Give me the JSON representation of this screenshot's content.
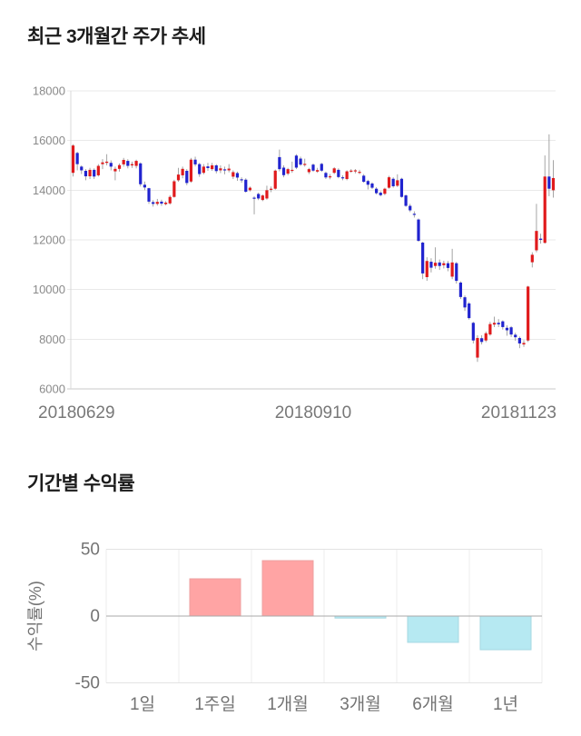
{
  "price_section": {
    "title": "최근 3개월간 주가 추세"
  },
  "returns_section": {
    "title": "기간별 수익률"
  },
  "chart_data": [
    {
      "type": "candlestick",
      "title": "최근 3개월간 주가 추세",
      "x_tick_labels": [
        "20180629",
        "20180910",
        "20181123"
      ],
      "y_ticks": [
        18000,
        16000,
        14000,
        12000,
        10000,
        8000,
        6000
      ],
      "ylim": [
        6000,
        18000
      ],
      "grid": true,
      "up_color": "#e01a1c",
      "down_color": "#2023cf",
      "wick_color": "#9a9a9a",
      "candles_ohlc": [
        [
          14700,
          15850,
          14550,
          15800
        ],
        [
          15500,
          15550,
          14800,
          15050
        ],
        [
          14950,
          15000,
          14650,
          14800
        ],
        [
          14780,
          14850,
          14400,
          14560
        ],
        [
          14560,
          14900,
          14450,
          14820
        ],
        [
          14820,
          14880,
          14450,
          14550
        ],
        [
          14600,
          15050,
          14550,
          14980
        ],
        [
          15050,
          15250,
          14850,
          15120
        ],
        [
          15100,
          15450,
          15000,
          15150
        ],
        [
          15100,
          15200,
          14800,
          14950
        ],
        [
          14760,
          14950,
          14400,
          14860
        ],
        [
          14860,
          15080,
          14750,
          15010
        ],
        [
          15040,
          15300,
          14950,
          15220
        ],
        [
          15180,
          15250,
          14880,
          14980
        ],
        [
          15000,
          15150,
          14900,
          15050
        ],
        [
          14980,
          15230,
          14880,
          15180
        ],
        [
          15080,
          15120,
          14150,
          14240
        ],
        [
          14220,
          14350,
          14000,
          14110
        ],
        [
          14080,
          14100,
          13450,
          13540
        ],
        [
          13520,
          13600,
          13340,
          13450
        ],
        [
          13450,
          13650,
          13380,
          13530
        ],
        [
          13540,
          13620,
          13370,
          13460
        ],
        [
          13440,
          13560,
          13390,
          13500
        ],
        [
          13470,
          13800,
          13420,
          13730
        ],
        [
          13730,
          14420,
          13700,
          14360
        ],
        [
          14400,
          14900,
          14340,
          14630
        ],
        [
          14600,
          14950,
          14480,
          14860
        ],
        [
          14780,
          14850,
          14200,
          14290
        ],
        [
          14350,
          15300,
          14300,
          15230
        ],
        [
          15230,
          15350,
          14960,
          15040
        ],
        [
          15050,
          15100,
          14540,
          14650
        ],
        [
          14700,
          15050,
          14640,
          14950
        ],
        [
          14960,
          15100,
          14780,
          14890
        ],
        [
          14850,
          15100,
          14780,
          15000
        ],
        [
          15000,
          15050,
          14680,
          14770
        ],
        [
          14800,
          15000,
          14690,
          14880
        ],
        [
          14840,
          14950,
          14640,
          14820
        ],
        [
          14800,
          15050,
          14720,
          14870
        ],
        [
          14545,
          14800,
          14450,
          14727
        ],
        [
          14690,
          14750,
          14380,
          14509
        ],
        [
          14440,
          14520,
          14300,
          14436
        ],
        [
          14424,
          14480,
          13900,
          13939
        ],
        [
          14000,
          14150,
          13950,
          14100
        ],
        [
          13700,
          13760,
          13030,
          13697
        ],
        [
          13848,
          13900,
          13600,
          13667
        ],
        [
          13606,
          13830,
          13560,
          13788
        ],
        [
          13667,
          14180,
          13620,
          14000
        ],
        [
          14020,
          14150,
          13920,
          14060
        ],
        [
          14061,
          14830,
          14020,
          14788
        ],
        [
          15333,
          15636,
          14760,
          14848
        ],
        [
          14909,
          15000,
          14520,
          14606
        ],
        [
          14667,
          14900,
          14600,
          14848
        ],
        [
          14780,
          15150,
          14700,
          14820
        ],
        [
          15394,
          15450,
          14850,
          14909
        ],
        [
          15273,
          15350,
          14980,
          15030
        ],
        [
          15050,
          15270,
          14950,
          15060
        ],
        [
          14727,
          14900,
          14650,
          14848
        ],
        [
          15030,
          15080,
          14740,
          14788
        ],
        [
          14750,
          14900,
          14700,
          14810
        ],
        [
          15061,
          15100,
          14740,
          14788
        ],
        [
          14697,
          14750,
          14450,
          14515
        ],
        [
          14540,
          14650,
          14440,
          14560
        ],
        [
          14700,
          14930,
          14650,
          14880
        ],
        [
          14820,
          14880,
          14480,
          14530
        ],
        [
          14520,
          14600,
          14400,
          14480
        ],
        [
          14450,
          14800,
          14400,
          14760
        ],
        [
          14780,
          14850,
          14700,
          14790
        ],
        [
          14780,
          14850,
          14680,
          14800
        ],
        [
          14740,
          14820,
          14650,
          14740
        ],
        [
          14585,
          14650,
          14300,
          14340
        ],
        [
          14370,
          14420,
          14030,
          14220
        ],
        [
          14270,
          14320,
          14050,
          14100
        ],
        [
          14060,
          14120,
          13830,
          13880
        ],
        [
          13900,
          13960,
          13750,
          13800
        ],
        [
          13855,
          14100,
          13800,
          14060
        ],
        [
          14100,
          14580,
          14060,
          14520
        ],
        [
          14460,
          14520,
          14100,
          14160
        ],
        [
          14180,
          14640,
          14130,
          14400
        ],
        [
          14460,
          14500,
          13700,
          13730
        ],
        [
          13790,
          13830,
          13330,
          13370
        ],
        [
          13370,
          13450,
          13120,
          13190
        ],
        [
          13050,
          13150,
          12900,
          13020
        ],
        [
          12820,
          12860,
          11930,
          11960
        ],
        [
          11890,
          11920,
          10420,
          10650
        ],
        [
          10500,
          11300,
          10350,
          11150
        ],
        [
          11120,
          11260,
          10690,
          10880
        ],
        [
          10950,
          11700,
          10840,
          11080
        ],
        [
          11090,
          11210,
          10790,
          10950
        ],
        [
          10980,
          11160,
          10850,
          11060
        ],
        [
          11060,
          11150,
          10740,
          10870
        ],
        [
          10520,
          11640,
          10420,
          11090
        ],
        [
          11060,
          11110,
          10240,
          10350
        ],
        [
          10280,
          10330,
          9620,
          9700
        ],
        [
          9690,
          9760,
          9140,
          9280
        ],
        [
          9440,
          9500,
          8790,
          8850
        ],
        [
          8660,
          8700,
          7830,
          7950
        ],
        [
          7260,
          8160,
          7090,
          8050
        ],
        [
          8040,
          8160,
          7790,
          7890
        ],
        [
          7950,
          8310,
          7880,
          8240
        ],
        [
          8190,
          8700,
          8140,
          8610
        ],
        [
          8590,
          8910,
          8490,
          8660
        ],
        [
          8660,
          8810,
          8490,
          8600
        ],
        [
          8720,
          8760,
          8390,
          8490
        ],
        [
          8460,
          8560,
          8140,
          8360
        ],
        [
          8480,
          8530,
          8090,
          8190
        ],
        [
          8180,
          8260,
          7940,
          8080
        ],
        [
          8050,
          8110,
          7640,
          7830
        ],
        [
          7790,
          7960,
          7690,
          7850
        ],
        [
          7950,
          10150,
          7890,
          10120
        ],
        [
          11100,
          11500,
          10890,
          11400
        ],
        [
          11580,
          13450,
          11500,
          12360
        ],
        [
          12050,
          12250,
          11850,
          12000
        ],
        [
          11880,
          15400,
          11850,
          14550
        ],
        [
          14550,
          16250,
          13760,
          14060
        ],
        [
          14000,
          15210,
          13700,
          14490
        ]
      ]
    },
    {
      "type": "bar",
      "title": "기간별 수익률",
      "categories": [
        "1일",
        "1주일",
        "1개월",
        "3개월",
        "6개월",
        "1년"
      ],
      "values": [
        0,
        27.9,
        41.5,
        -1.5,
        -19.7,
        -25.2
      ],
      "ylabel": "수익률(%)",
      "y_ticks": [
        50,
        0,
        -50
      ],
      "ylim": [
        -50,
        50
      ],
      "grid": true,
      "legend": "none",
      "positive_color": "#ffa4a4",
      "positive_border": "#eda0a0",
      "negative_color": "#b6e9f2",
      "negative_border": "#a6d8e2"
    }
  ]
}
